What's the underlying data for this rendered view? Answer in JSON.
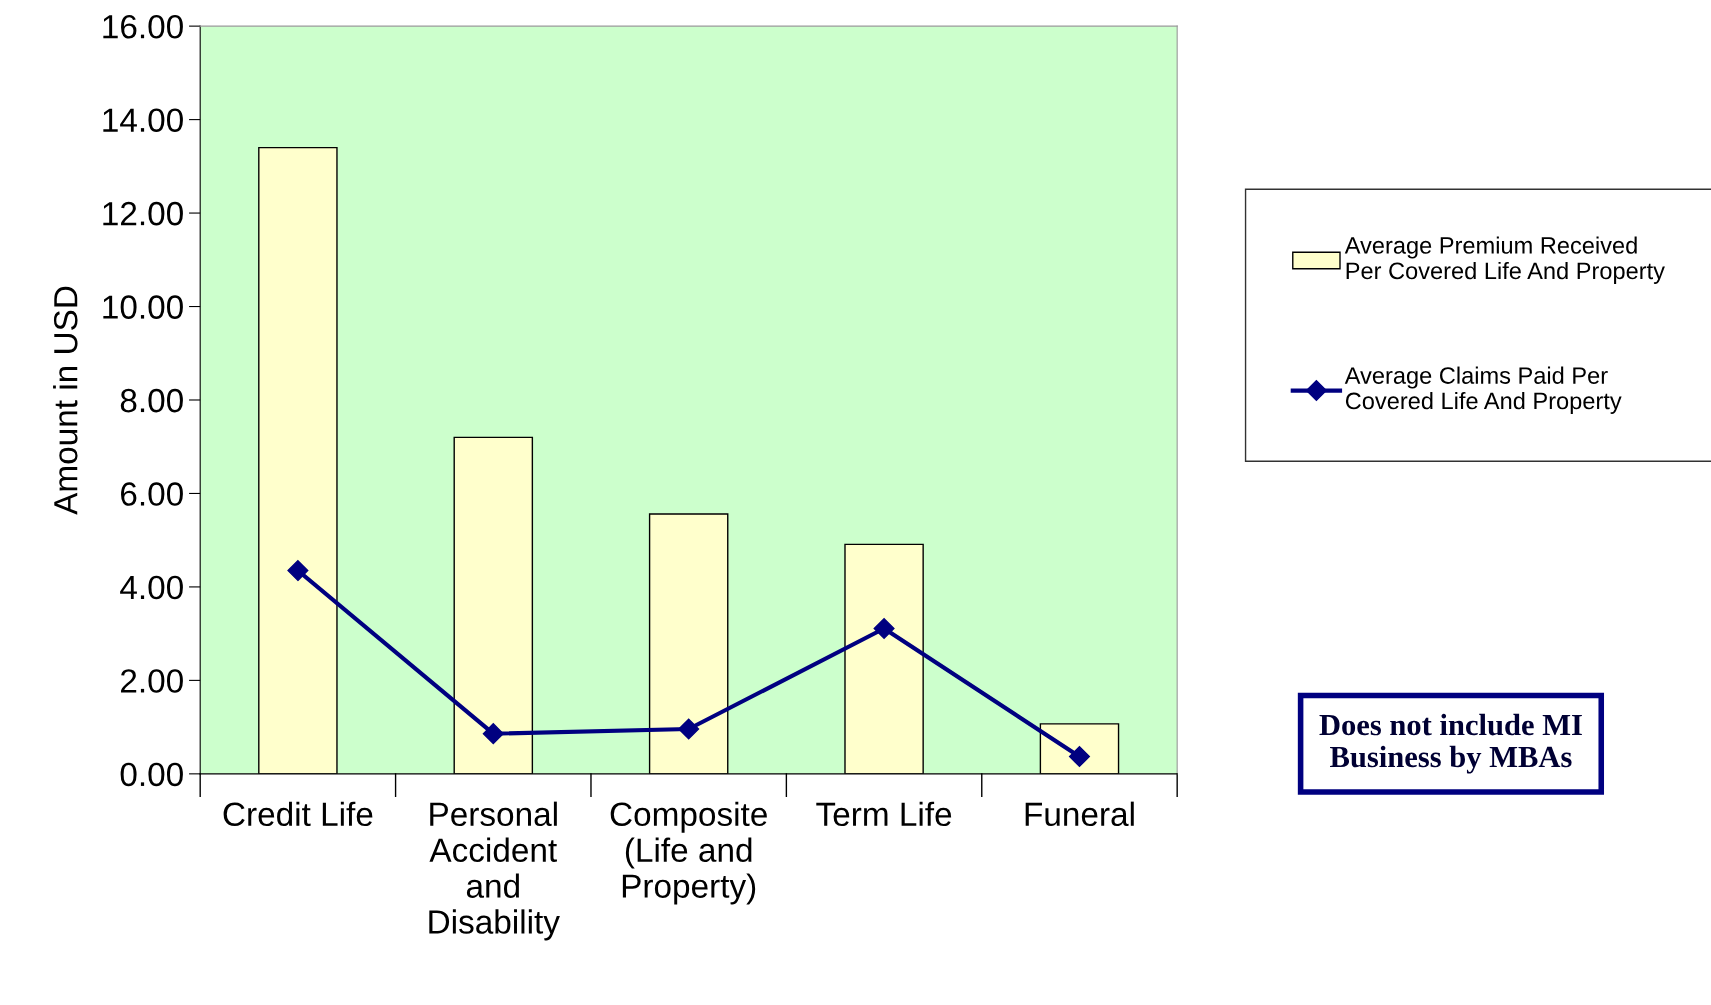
{
  "chart_data": {
    "type": "bar",
    "ylabel": "Amount in USD",
    "categories": [
      "Credit Life",
      "Personal\nAccident\nand\nDisability",
      "Composite\n(Life and\nProperty)",
      "Term Life",
      "Funeral"
    ],
    "series": [
      {
        "name": "Average Premium Received\nPer Covered Life And Property",
        "color": "#ffffcc",
        "values": [
          13.4,
          7.2,
          5.56,
          4.91,
          1.07
        ]
      },
      {
        "name": "Average Claims Paid Per\nCovered Life And Property",
        "type": "line",
        "color": "#000080",
        "marker": "diamond",
        "values": [
          4.35,
          0.86,
          0.96,
          3.11,
          0.37
        ]
      }
    ],
    "ylim": [
      0,
      16
    ],
    "yticks": [
      {
        "value": 0,
        "label": "0.00"
      },
      {
        "value": 2,
        "label": "2.00"
      },
      {
        "value": 4,
        "label": "4.00"
      },
      {
        "value": 6,
        "label": "6.00"
      },
      {
        "value": 8,
        "label": "8.00"
      },
      {
        "value": 10,
        "label": "10.00"
      },
      {
        "value": 12,
        "label": "12.00"
      },
      {
        "value": 14,
        "label": "14.00"
      },
      {
        "value": 16,
        "label": "16.00"
      }
    ],
    "grid": false,
    "legend": "right",
    "annotations": [
      "Does not include MI\nBusiness by MBAs"
    ]
  }
}
